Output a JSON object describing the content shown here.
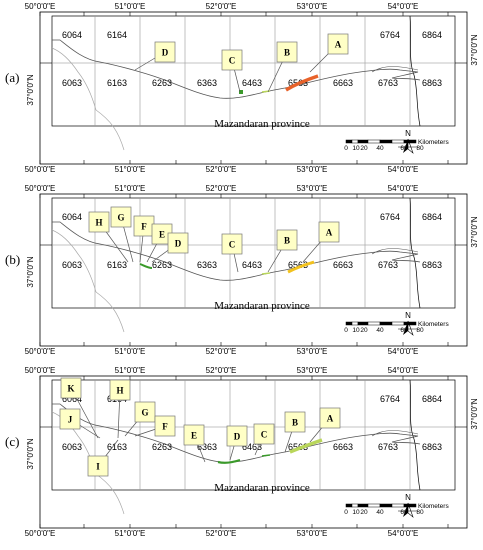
{
  "panels": [
    {
      "label": "(a)",
      "province": "Mazandaran province",
      "lon_ticks": [
        "50°0'0\"E",
        "51°0'0\"E",
        "52°0'0\"E",
        "53°0'0\"E",
        "54°0'0\"E"
      ],
      "lat_tick": "37°0'0\"N",
      "sheets": [
        "6064",
        "6164",
        "6764",
        "6864",
        "6063",
        "6163",
        "6263",
        "6363",
        "6463",
        "6563",
        "6663",
        "6763",
        "6863"
      ],
      "callouts": [
        "D",
        "C",
        "B",
        "A"
      ],
      "scalebar": {
        "ticks": [
          "0",
          "10",
          "20",
          "40",
          "60",
          "80"
        ],
        "unit": "Kilometers"
      },
      "north": "N"
    },
    {
      "label": "(b)",
      "province": "Mazandaran province",
      "lon_ticks": [
        "50°0'0\"E",
        "51°0'0\"E",
        "52°0'0\"E",
        "53°0'0\"E",
        "54°0'0\"E"
      ],
      "lat_tick": "37°0'0\"N",
      "sheets": [
        "6064",
        "6764",
        "6864",
        "6063",
        "6163",
        "6263",
        "6363",
        "6463",
        "6563",
        "6663",
        "6763",
        "6863"
      ],
      "callouts": [
        "H",
        "G",
        "F",
        "E",
        "D",
        "C",
        "B",
        "A"
      ],
      "scalebar": {
        "ticks": [
          "0",
          "10",
          "20",
          "40",
          "60",
          "80"
        ],
        "unit": "Kilometers"
      },
      "north": "N"
    },
    {
      "label": "(c)",
      "province": "Mazandaran province",
      "lon_ticks": [
        "50°0'0\"E",
        "51°0'0\"E",
        "52°0'0\"E",
        "53°0'0\"E",
        "54°0'0\"E"
      ],
      "lat_tick": "37°0'0\"N",
      "sheets": [
        "6064",
        "6164",
        "6764",
        "6864",
        "6063",
        "6163",
        "6263",
        "6363",
        "6463",
        "6563",
        "6663",
        "6763",
        "6863"
      ],
      "callouts": [
        "K",
        "H",
        "J",
        "I",
        "G",
        "F",
        "E",
        "D",
        "C",
        "B",
        "A"
      ],
      "scalebar": {
        "ticks": [
          "0",
          "10",
          "20",
          "40",
          "60",
          "80"
        ],
        "unit": "Kilometers"
      },
      "north": "N"
    }
  ],
  "colors": {
    "callout_fill": "#ffffc6",
    "site_a1": "#e8622a",
    "site_a2": "#f2c21e",
    "site_green": "#3a9a2a",
    "site_lightgreen": "#b9d65a"
  }
}
